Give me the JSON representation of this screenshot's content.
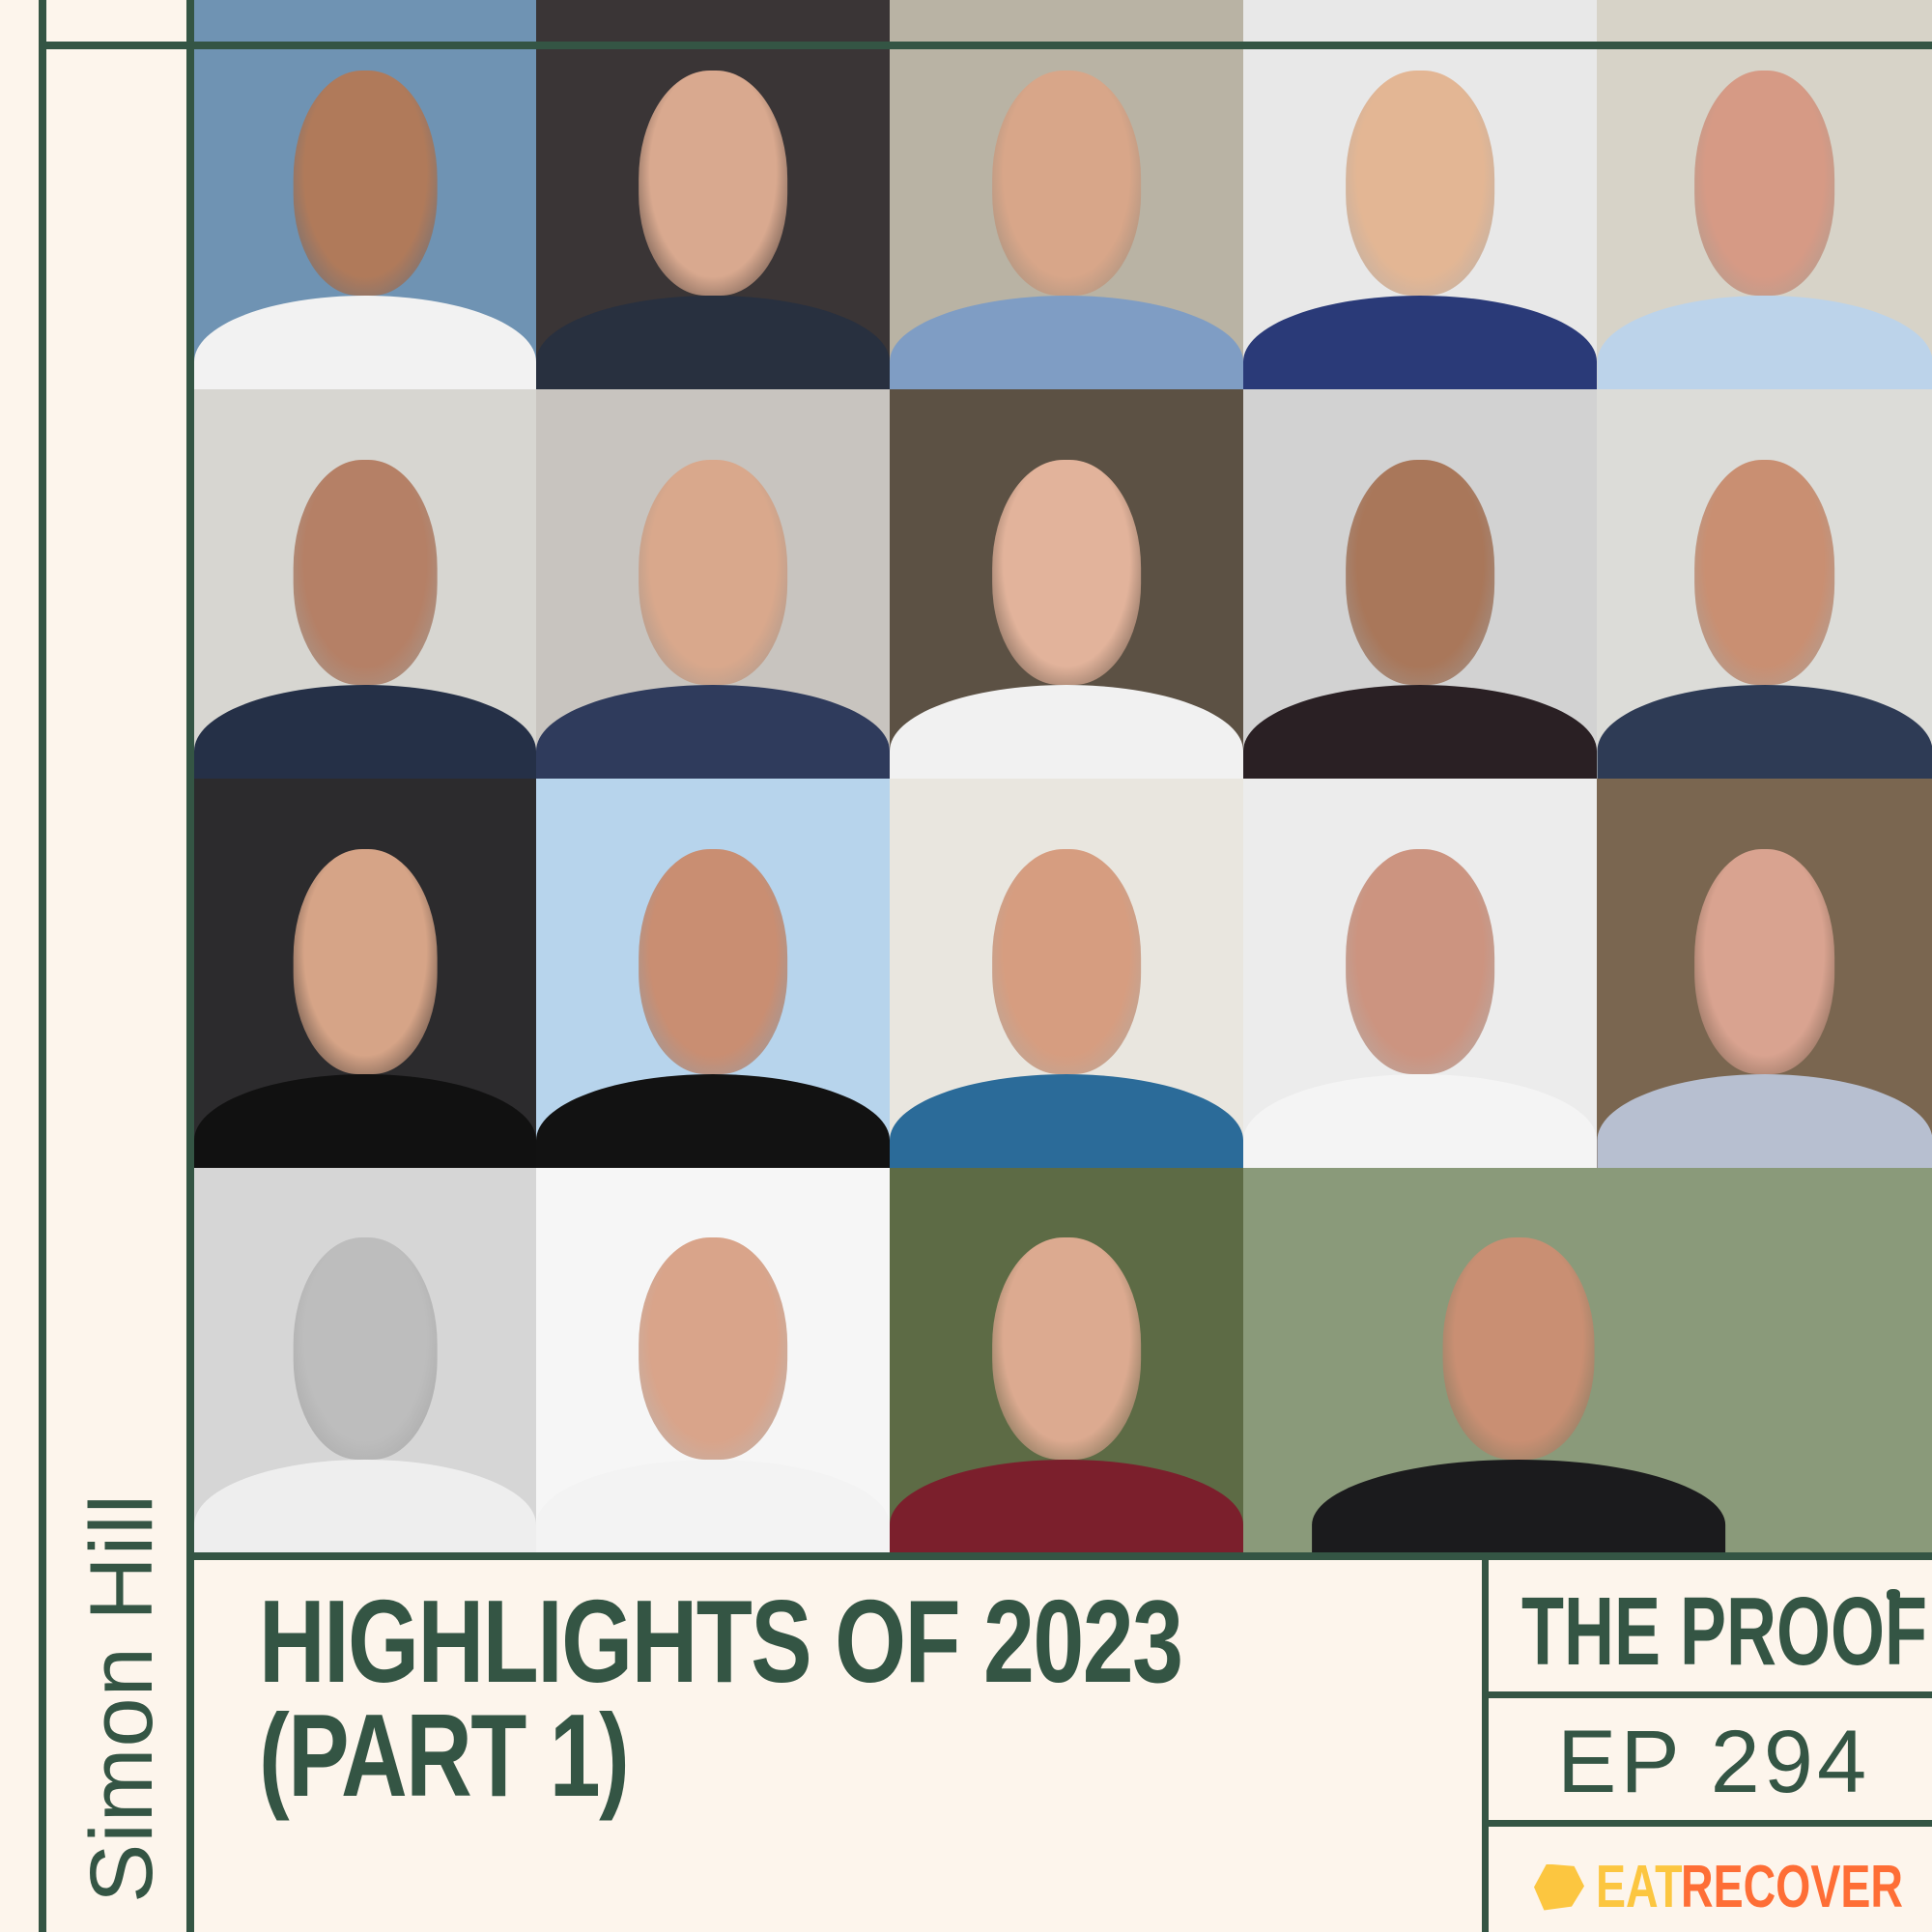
{
  "episode": {
    "title_line1": "HIGHLIGHTS OF 2023",
    "title_line2": "(PART 1)",
    "host": "Simon Hill",
    "show": "THE PROOF",
    "episode_number": "EP 294",
    "sponsor": {
      "word1": "EAT",
      "word2": "RECOVER",
      "color1": "#fcc640",
      "color2": "#fe6e36"
    }
  },
  "colors": {
    "background": "#fdf5ec",
    "accent": "#345544"
  },
  "guests": [
    {
      "bg": "#6f93b3",
      "skin": "#b07a5a",
      "clothes": "#f2f2f2"
    },
    {
      "bg": "#3a3536",
      "skin": "#d9a98f",
      "clothes": "#28303f"
    },
    {
      "bg": "#b9b3a4",
      "skin": "#d8a689",
      "clothes": "#7f9dc4"
    },
    {
      "bg": "#e8e8e8",
      "skin": "#e3b694",
      "clothes": "#2a3a78"
    },
    {
      "bg": "#d7d3c8",
      "skin": "#d69a85",
      "clothes": "#bcd3ea"
    },
    {
      "bg": "#d7d6d1",
      "skin": "#b58066",
      "clothes": "#253047"
    },
    {
      "bg": "#c8c4bf",
      "skin": "#d9a88c",
      "clothes": "#2f3b5c"
    },
    {
      "bg": "#5c5144",
      "skin": "#e2b39b",
      "clothes": "#f1f1f1"
    },
    {
      "bg": "#d2d2d2",
      "skin": "#a9775a",
      "clothes": "#2a2024"
    },
    {
      "bg": "#dcdcd8",
      "skin": "#c98f72",
      "clothes": "#2e3b55"
    },
    {
      "bg": "#2c2b2d",
      "skin": "#d6a487",
      "clothes": "#111111"
    },
    {
      "bg": "#b7d4ec",
      "skin": "#c98e72",
      "clothes": "#121212"
    },
    {
      "bg": "#e9e6df",
      "skin": "#d69d80",
      "clothes": "#2b6b99"
    },
    {
      "bg": "#ececec",
      "skin": "#cc9480",
      "clothes": "#f4f4f4"
    },
    {
      "bg": "#7a6650",
      "skin": "#d9a390",
      "clothes": "#b7bfd0"
    },
    {
      "bg": "#d6d6d6",
      "skin": "#bdbdbd",
      "clothes": "#eeeeee"
    },
    {
      "bg": "#f6f6f6",
      "skin": "#d9a48a",
      "clothes": "#f3f3f3"
    },
    {
      "bg": "#5d6b45",
      "skin": "#dcaa90",
      "clothes": "#7b1f2c"
    },
    {
      "bg": "#8a9a7a",
      "skin": "#c98f73",
      "clothes": "#1b1b1d"
    }
  ]
}
